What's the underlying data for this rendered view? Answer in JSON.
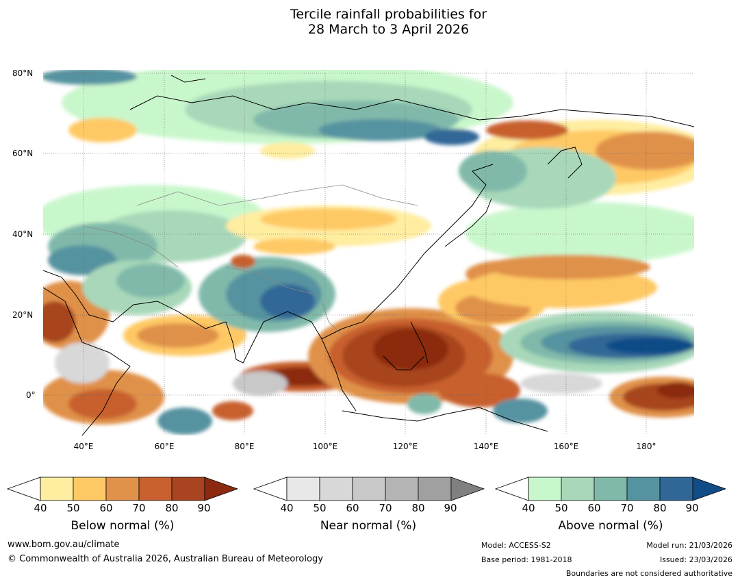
{
  "title": {
    "line1": "Tercile rainfall probabilities for",
    "line2": "28 March to 3 April 2026"
  },
  "map": {
    "lat_labels": [
      "80°N",
      "60°N",
      "40°N",
      "20°N",
      "0°"
    ],
    "lon_labels": [
      "40°E",
      "60°E",
      "80°E",
      "100°E",
      "120°E",
      "140°E",
      "160°E",
      "180°"
    ]
  },
  "legends": [
    {
      "label": "Below normal (%)",
      "ticks": [
        "40",
        "50",
        "60",
        "70",
        "80",
        "90"
      ],
      "colors": [
        "#ffeda0",
        "#fec965",
        "#e0914a",
        "#c8612f",
        "#a8441f",
        "#8b2a10"
      ]
    },
    {
      "label": "Near normal (%)",
      "ticks": [
        "40",
        "50",
        "60",
        "70",
        "80",
        "90"
      ],
      "colors": [
        "#e8e8e8",
        "#d8d8d8",
        "#c8c8c8",
        "#b4b4b4",
        "#a0a0a0",
        "#808080"
      ]
    },
    {
      "label": "Above normal (%)",
      "ticks": [
        "40",
        "50",
        "60",
        "70",
        "80",
        "90"
      ],
      "colors": [
        "#c9f7cc",
        "#a8d8b9",
        "#80b9aa",
        "#5693a0",
        "#316797",
        "#114c86"
      ]
    }
  ],
  "footer": {
    "website": "www.bom.gov.au/climate",
    "copyright": "© Commonwealth of Australia 2026, Australian Bureau of Meteorology",
    "model": "Model: ACCESS-S2",
    "base_period": "Base period: 1981-2018",
    "model_run": "Model run: 21/03/2026",
    "issued": "Issued: 23/03/2026",
    "disclaimer": "Boundaries are not considered authoritative"
  }
}
